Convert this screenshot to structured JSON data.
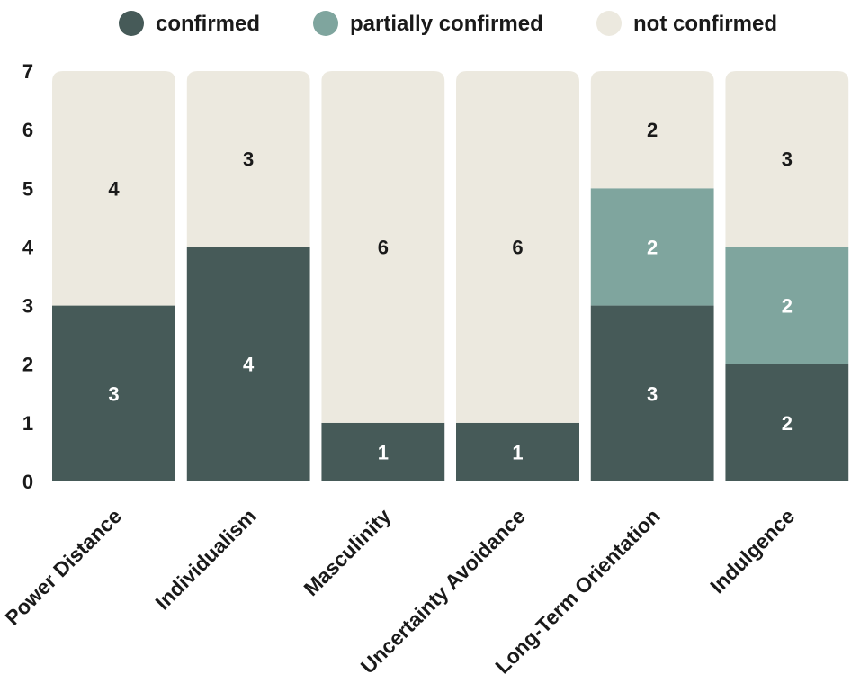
{
  "chart_data": {
    "type": "bar",
    "stacked": true,
    "categories": [
      "Power Distance",
      "Individualism",
      "Masculinity",
      "Uncertainty Avoidance",
      "Long-Term Orientation",
      "Indulgence"
    ],
    "series": [
      {
        "name": "confirmed",
        "color": "#465a58",
        "label_color": "#ffffff",
        "values": [
          3,
          4,
          1,
          1,
          3,
          2
        ]
      },
      {
        "name": "partially confirmed",
        "color": "#7fa59e",
        "label_color": "#ffffff",
        "values": [
          0,
          0,
          0,
          0,
          2,
          2
        ]
      },
      {
        "name": "not confirmed",
        "color": "#ece9df",
        "label_color": "#1a1a1a",
        "values": [
          4,
          3,
          6,
          6,
          2,
          3
        ]
      }
    ],
    "ylim": [
      0,
      7
    ],
    "yticks": [
      0,
      1,
      2,
      3,
      4,
      5,
      6,
      7
    ],
    "legend_position": "top",
    "grid": false
  }
}
